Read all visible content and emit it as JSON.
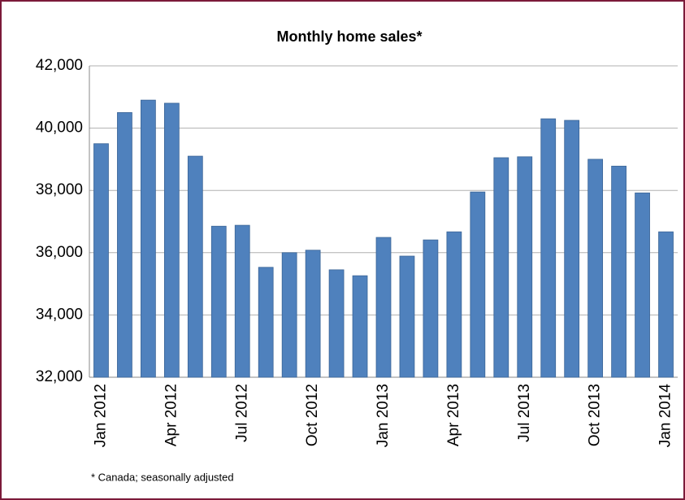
{
  "chart_data": {
    "type": "bar",
    "title": "Monthly home sales*",
    "footnote": "* Canada; seasonally adjusted",
    "categories": [
      "Jan 2012",
      null,
      null,
      "Apr 2012",
      null,
      null,
      "Jul 2012",
      null,
      null,
      "Oct 2012",
      null,
      null,
      "Jan 2013",
      null,
      null,
      "Apr 2013",
      null,
      null,
      "Jul 2013",
      null,
      null,
      "Oct 2013",
      null,
      null,
      "Jan 2014"
    ],
    "values": [
      39500,
      40500,
      40900,
      40800,
      39100,
      36850,
      36880,
      35530,
      36000,
      36080,
      35450,
      35260,
      36490,
      35890,
      36410,
      36670,
      37950,
      39050,
      39080,
      40300,
      40250,
      39000,
      38780,
      37920,
      36670
    ],
    "color": "#4f81bd",
    "ylim": [
      32000,
      42000
    ],
    "yticks": [
      {
        "value": 32000,
        "label": "32,000"
      },
      {
        "value": 34000,
        "label": "34,000"
      },
      {
        "value": 36000,
        "label": "36,000"
      },
      {
        "value": 38000,
        "label": "38,000"
      },
      {
        "value": 40000,
        "label": "40,000"
      },
      {
        "value": 42000,
        "label": "42,000"
      }
    ],
    "grid": true
  }
}
